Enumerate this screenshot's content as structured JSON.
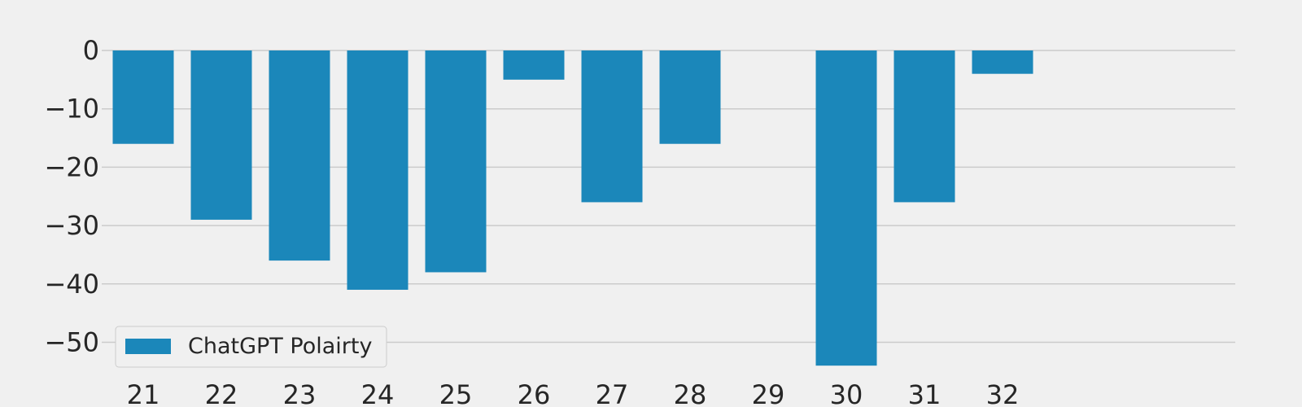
{
  "chart_data": {
    "type": "bar",
    "categories": [
      "21",
      "22",
      "23",
      "24",
      "25",
      "26",
      "27",
      "28",
      "29",
      "30",
      "31",
      "32"
    ],
    "series": [
      {
        "name": "ChatGPT Polairty",
        "values": [
          -16,
          -29,
          -36,
          -41,
          -38,
          -5,
          -26,
          -16,
          0,
          -54,
          -26,
          -4
        ]
      }
    ],
    "title": "",
    "xlabel": "",
    "ylabel": "",
    "ylim": [
      -55,
      0
    ],
    "yticks": [
      0,
      -10,
      -20,
      -30,
      -40,
      -50
    ],
    "ytick_labels": [
      "0",
      "−10",
      "−20",
      "−30",
      "−40",
      "−50"
    ],
    "grid": "horizontal",
    "legend_position": "lower-left",
    "colors": {
      "bar": "#1b87ba",
      "background": "#f0f0f0",
      "grid": "#cbcbcb",
      "text": "#262626"
    }
  }
}
